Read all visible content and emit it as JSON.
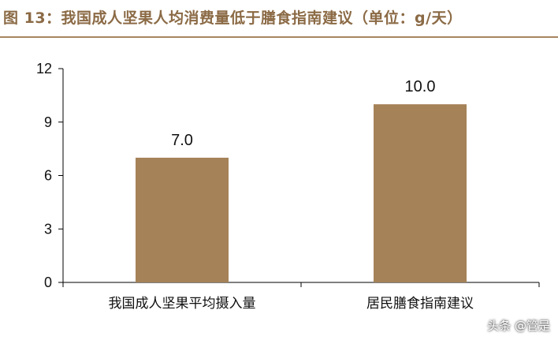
{
  "title": "图 13：我国成人坚果人均消费量低于膳食指南建议（单位：g/天）",
  "watermark": "头条 @管是",
  "colors": {
    "bar": "#a58258",
    "title": "#8b6a45",
    "axis": "#000000"
  },
  "chart_data": {
    "type": "bar",
    "categories": [
      "我国成人坚果平均摄入量",
      "居民膳食指南建议"
    ],
    "values": [
      7.0,
      10.0
    ],
    "value_labels": [
      "7.0",
      "10.0"
    ],
    "yticks": [
      "0",
      "3",
      "6",
      "9",
      "12"
    ],
    "ylim": [
      0,
      12
    ],
    "grid": false,
    "legend": false
  }
}
